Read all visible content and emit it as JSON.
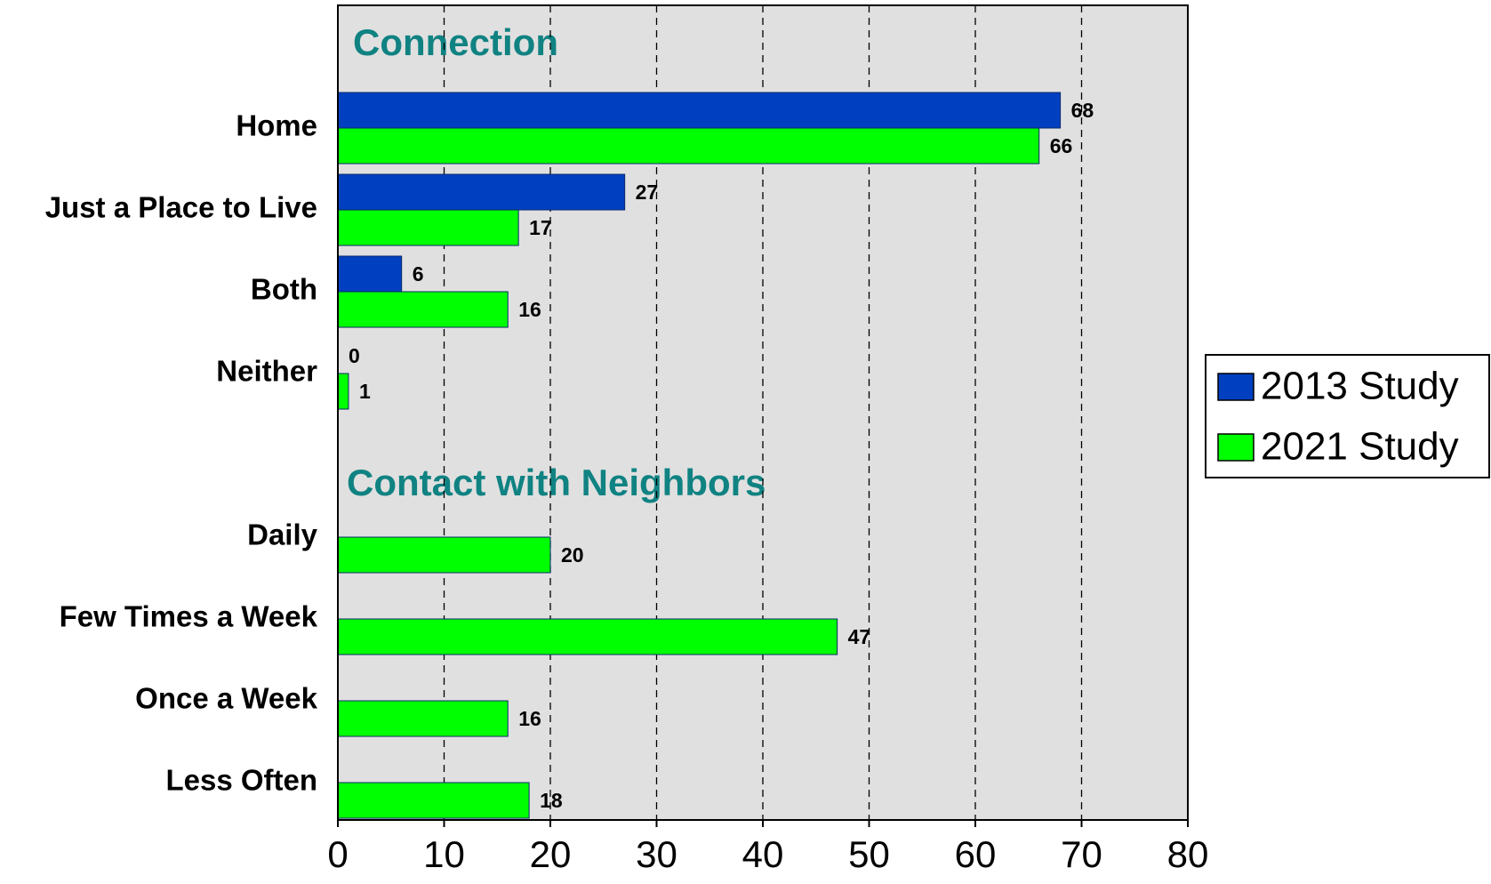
{
  "chart_data": {
    "type": "bar",
    "orientation": "horizontal",
    "annotations": [
      "Connection",
      "Contact with Neighbors"
    ],
    "categories": [
      "Home",
      "Just a Place to Live",
      "Both",
      "Neither",
      "Daily",
      "Few Times a Week",
      "Once a Week",
      "Less Often"
    ],
    "series": [
      {
        "name": "2013 Study",
        "color": "#0040c0",
        "values": [
          68,
          27,
          6,
          0,
          null,
          null,
          null,
          null
        ]
      },
      {
        "name": "2021 Study",
        "color": "#00ff00",
        "values": [
          66,
          17,
          16,
          1,
          20,
          47,
          16,
          18
        ]
      }
    ],
    "xlim": [
      0,
      80
    ],
    "xticks": [
      0,
      10,
      20,
      30,
      40,
      50,
      60,
      70,
      80
    ],
    "grid": true,
    "legend": "right"
  }
}
